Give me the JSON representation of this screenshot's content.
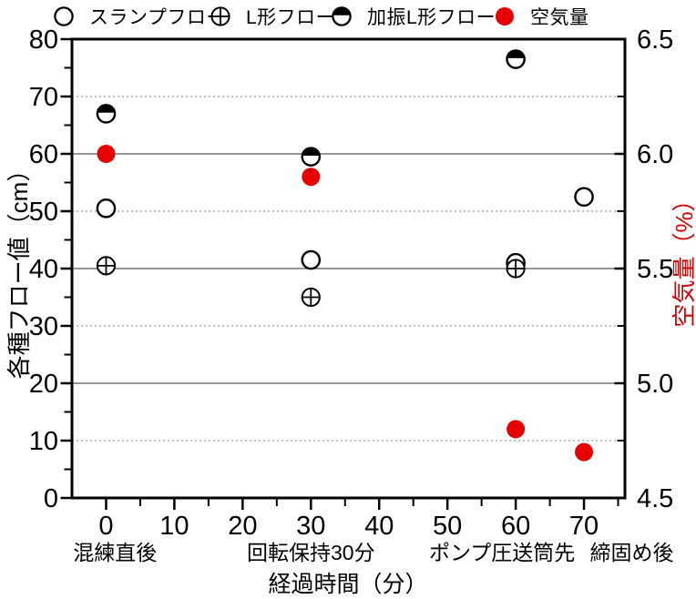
{
  "colors": {
    "marker_red": "#e60000",
    "right_axis_title_red": "#d40000",
    "grid_solid": "#5a5a5a",
    "grid_dotted": "#9a9a9a",
    "axis_black": "#000000"
  },
  "legend": {
    "items": [
      {
        "label": "スランプフロー",
        "marker": "open-circle"
      },
      {
        "label": "L形フロー",
        "marker": "circle-plus"
      },
      {
        "label": "加振L形フロー",
        "marker": "circle-half-top"
      },
      {
        "label": "空気量",
        "marker": "filled-circle-red"
      }
    ]
  },
  "chart_data": {
    "type": "scatter",
    "grid": "horizontal-only",
    "legend_position": "top",
    "x_axis": {
      "title": "経過時間（分）",
      "min": -5,
      "max": 76,
      "major_ticks": [
        0,
        10,
        20,
        30,
        40,
        50,
        60,
        70
      ],
      "minor_ticks": [
        5,
        15,
        25,
        35,
        45,
        55,
        65,
        75
      ],
      "category_labels": [
        {
          "text": "混練直後",
          "x": 1.3
        },
        {
          "text": "回転保持30分",
          "x": 30
        },
        {
          "text": "ポンプ圧送筒先",
          "x": 58
        },
        {
          "text": "締固め後",
          "x": 77
        }
      ]
    },
    "left_axis": {
      "title": "各種フロー値（cm）",
      "min": 0,
      "max": 80,
      "major_ticks": [
        0,
        10,
        20,
        30,
        40,
        50,
        60,
        70,
        80
      ],
      "minor_ticks": [
        5,
        15,
        25,
        35,
        45,
        55,
        65,
        75
      ],
      "grid_solid": [
        20,
        40,
        60
      ],
      "grid_dotted": [
        10,
        30,
        50,
        70
      ]
    },
    "right_axis": {
      "title": "空気量（%）",
      "min": 4.5,
      "max": 6.5,
      "major_ticks": [
        4.5,
        5.0,
        5.5,
        6.0,
        6.5
      ],
      "minor_ticks": [
        4.75,
        5.25,
        5.75,
        6.25
      ]
    },
    "series": [
      {
        "name": "スランプフロー",
        "marker": "open-circle",
        "axis": "left",
        "points": [
          [
            0,
            50.5
          ],
          [
            30,
            41.5
          ],
          [
            60,
            41
          ],
          [
            70,
            52.5
          ]
        ]
      },
      {
        "name": "L形フロー",
        "marker": "circle-plus",
        "axis": "left",
        "points": [
          [
            0,
            40.5
          ],
          [
            30,
            35
          ],
          [
            60,
            40
          ]
        ]
      },
      {
        "name": "加振L形フロー",
        "marker": "circle-half-top",
        "axis": "left",
        "points": [
          [
            0,
            67
          ],
          [
            30,
            59.5
          ],
          [
            60,
            76.5
          ]
        ]
      },
      {
        "name": "空気量",
        "marker": "filled-circle-red",
        "axis": "right",
        "points": [
          [
            0,
            6.0
          ],
          [
            30,
            5.9
          ],
          [
            60,
            4.8
          ],
          [
            70,
            4.7
          ]
        ]
      }
    ]
  }
}
